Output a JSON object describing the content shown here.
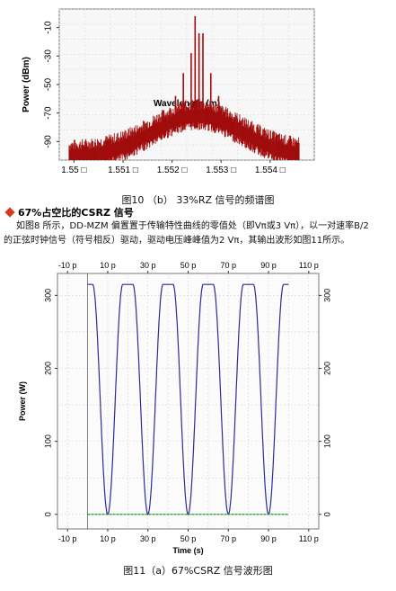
{
  "chart_data": [
    {
      "type": "line",
      "ylabel": "Power (dBm)",
      "xlabel": "Wavelength (m)",
      "x_ticks": [
        "1.55 □",
        "1.551 □",
        "1.552 □",
        "1.553 □",
        "1.554 □"
      ],
      "x_tick_values": [
        1.55,
        1.551,
        1.552,
        1.553,
        1.554
      ],
      "y_ticks": [
        "-10",
        "-30",
        "-50",
        "-70",
        "-90"
      ],
      "y_tick_values": [
        -10,
        -30,
        -50,
        -70,
        -90
      ],
      "xlim": [
        1.5497,
        1.5549
      ],
      "ylim": [
        -103,
        3
      ],
      "grid": true,
      "series": [
        {
          "color": "#a00d0d",
          "peaks": [
            {
              "x": 1.55239,
              "y": -28
            },
            {
              "x": 1.55247,
              "y": -2
            },
            {
              "x": 1.55255,
              "y": -14
            },
            {
              "x": 1.55263,
              "y": -14
            },
            {
              "x": 1.55231,
              "y": -66
            },
            {
              "x": 1.55271,
              "y": -66
            },
            {
              "x": 1.55223,
              "y": -42
            },
            {
              "x": 1.55279,
              "y": -42
            },
            {
              "x": 1.55207,
              "y": -58
            },
            {
              "x": 1.55295,
              "y": -58
            }
          ],
          "noise_floor_edge": -95,
          "noise_floor_center": -66
        }
      ]
    },
    {
      "type": "line",
      "ylabel": "Power (W)",
      "xlabel": "Time (s)",
      "x_ticks": [
        "-10 p",
        "10 p",
        "30 p",
        "50 p",
        "70 p",
        "90 p",
        "110 p"
      ],
      "x_tick_values": [
        -10,
        10,
        30,
        50,
        70,
        90,
        110
      ],
      "y_ticks": [
        "300",
        "200",
        "100",
        "0"
      ],
      "y_tick_values": [
        300,
        200,
        100,
        0
      ],
      "xlim": [
        -15,
        115
      ],
      "ylim": [
        -20,
        330
      ],
      "grid": true,
      "series": [
        {
          "color": "#2b2b9a",
          "amplitude": 315,
          "null_times": [
            10,
            30,
            50,
            70,
            90
          ],
          "x_range": [
            0,
            100
          ]
        },
        {
          "color": "#1a9a1a",
          "constant": 0,
          "x_range": [
            0,
            100
          ]
        }
      ]
    }
  ],
  "captions": {
    "fig10": "图10 （b） 33%RZ 信号的频谱图",
    "fig11": "图11（a）67%CSRZ 信号波形图"
  },
  "section": {
    "title": "67%占空比的CSRZ 信号"
  },
  "paragraph": {
    "line1": "如图8 所示，DD-MZM 偏置置于传输特性曲线的零值处（即Vπ或3 Vπ），以一对速率B/2",
    "line2": "的正弦时钟信号（符号相反）驱动，驱动电压峰峰值为2 Vπ，其输出波形如图11所示。"
  }
}
